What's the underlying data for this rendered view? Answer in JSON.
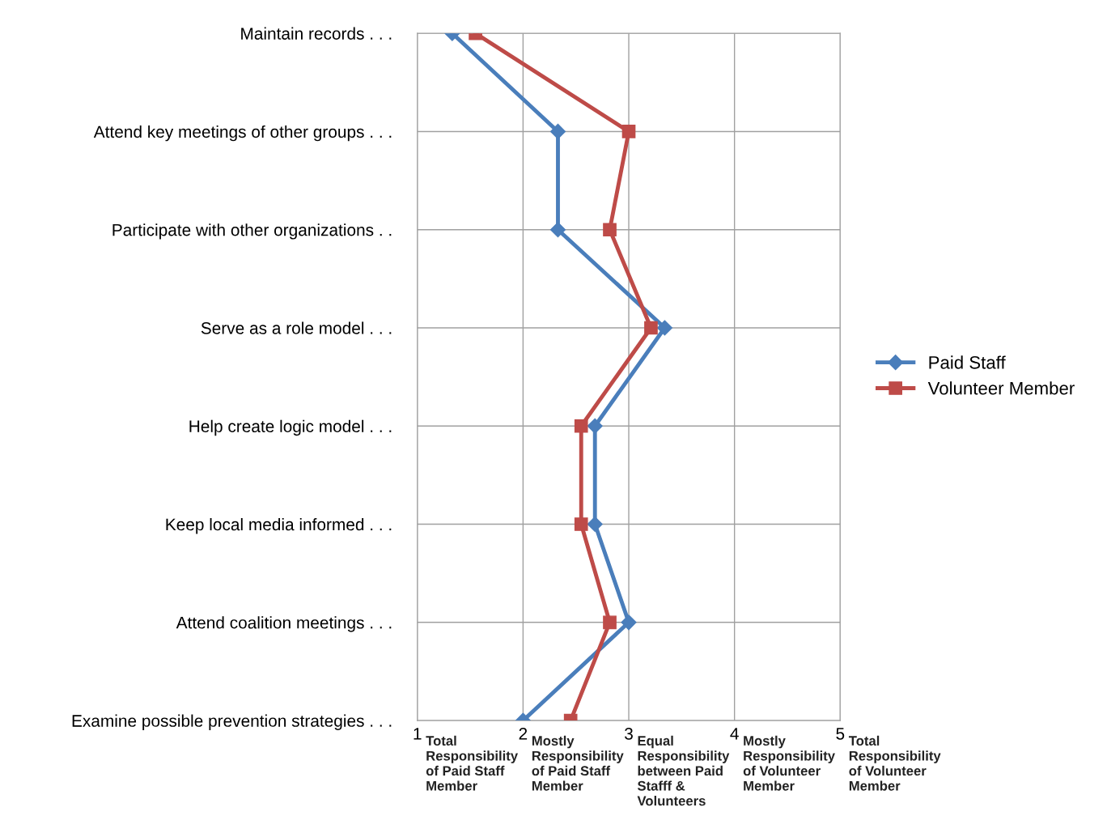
{
  "chart_data": {
    "type": "line",
    "orientation": "horizontal",
    "categories": [
      "Maintain records . . .",
      "Attend key meetings of other groups . . .",
      "Participate with other organizations . .",
      "Serve as a role model . . .",
      "Help create logic model . . .",
      "Keep local media informed . . .",
      "Attend coalition meetings . . .",
      "Examine possible prevention strategies . . ."
    ],
    "series": [
      {
        "name": "Paid Staff",
        "color": "#4a7ebb",
        "marker": "diamond",
        "values": [
          1.33,
          2.33,
          2.33,
          3.34,
          2.68,
          2.68,
          3.0,
          2.0
        ]
      },
      {
        "name": "Volunteer Member",
        "color": "#be4b48",
        "marker": "square",
        "values": [
          1.55,
          3.0,
          2.82,
          3.21,
          2.55,
          2.55,
          2.82,
          2.45
        ]
      }
    ],
    "xlim": [
      1,
      5
    ],
    "xticks": [
      1,
      2,
      3,
      4,
      5
    ],
    "annotations": [
      "Total Responsibility of Paid Staff Member",
      "Mostly Responsibility of Paid Staff Member",
      "Equal Responsibility between Paid Stafff & Volunteers",
      "Mostly Responsibility of Volunteer Member",
      "Total Responsibility of Volunteer Member"
    ],
    "grid": true,
    "legend": "right",
    "line_style": "solid"
  }
}
